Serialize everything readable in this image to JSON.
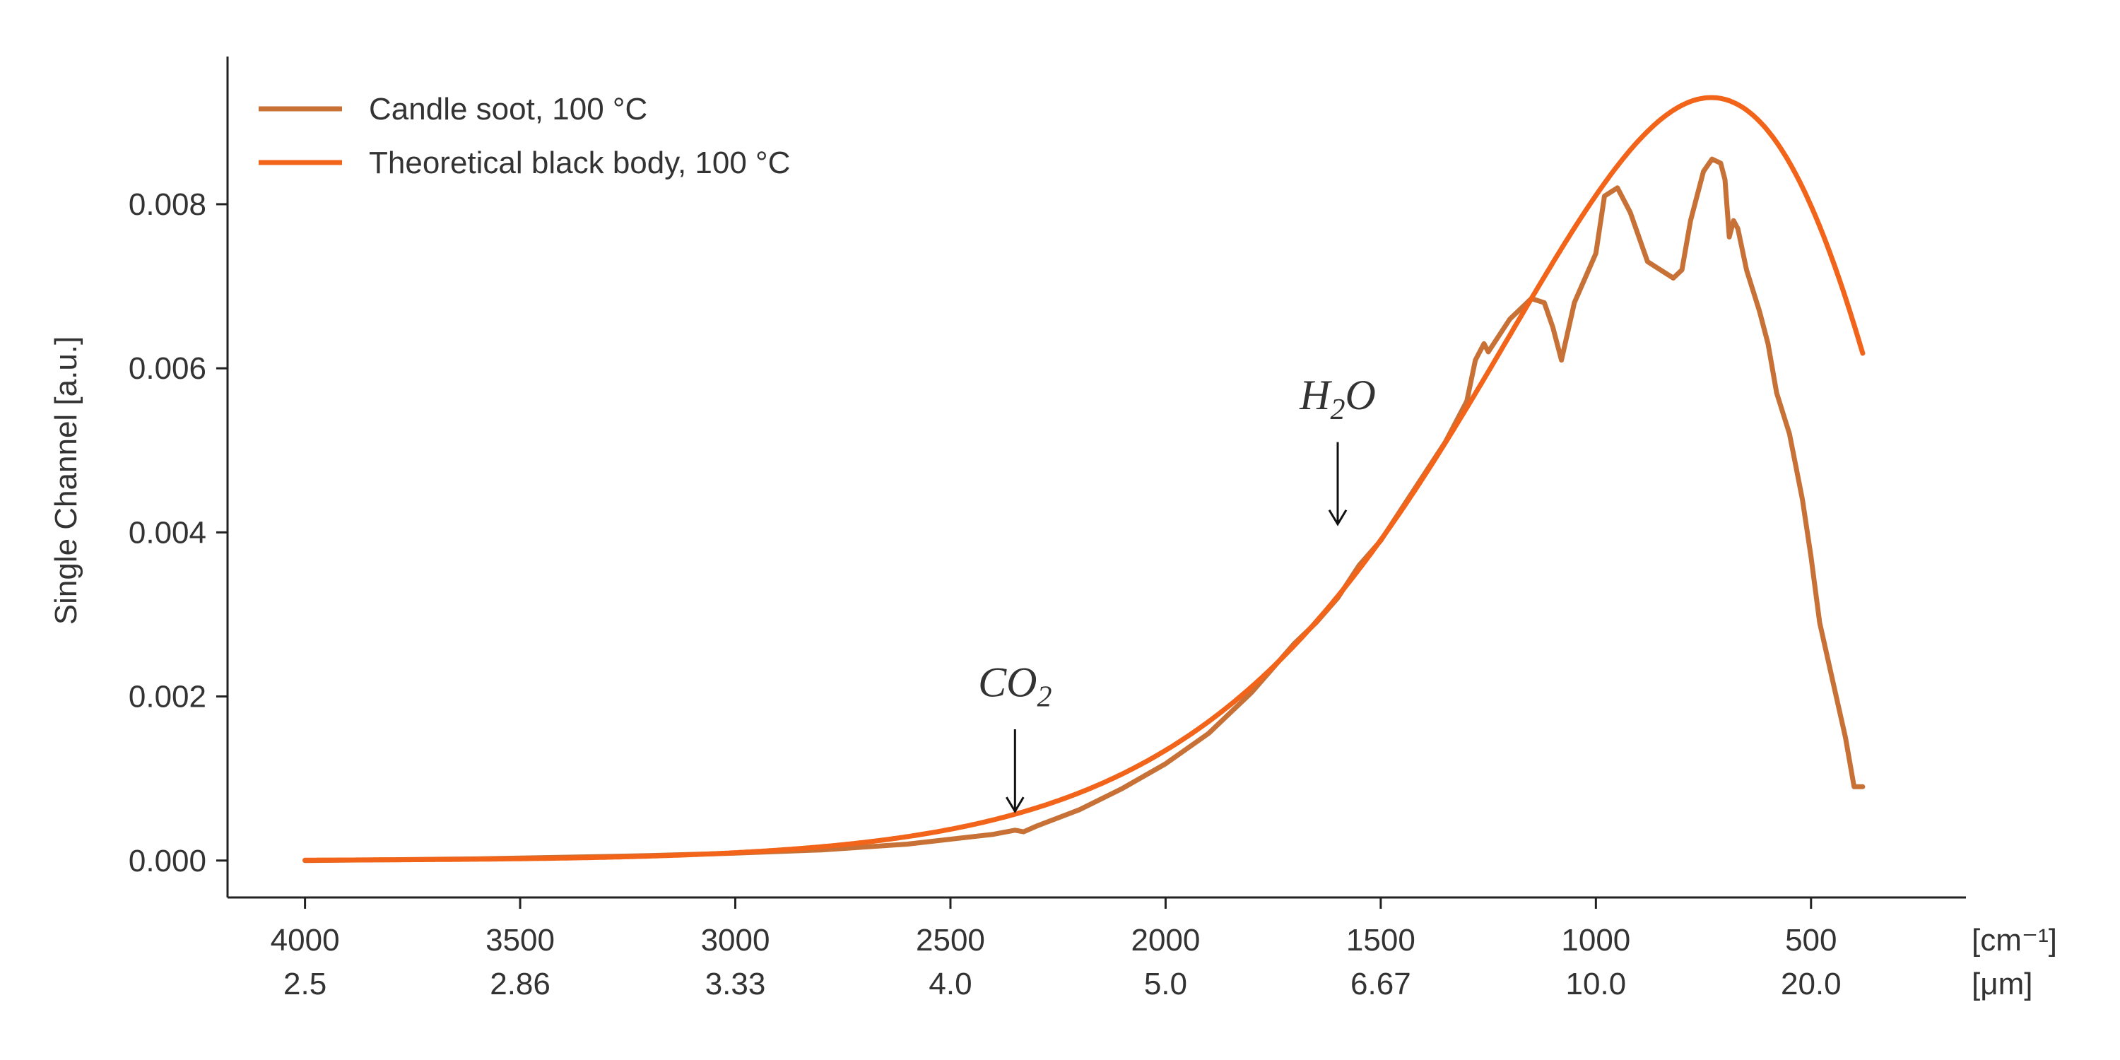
{
  "chart_data": {
    "type": "line",
    "title": "",
    "xlabel": "",
    "ylabel": "Single Channel [a.u.]",
    "x_unit_labels": [
      "[cm⁻¹]",
      "[μm]"
    ],
    "xlim": [
      4180,
      140
    ],
    "ylim": [
      -0.00045,
      0.0098
    ],
    "x_ticks": [
      {
        "value": 4000,
        "label": "4000",
        "label2": "2.5"
      },
      {
        "value": 3500,
        "label": "3500",
        "label2": "2.86"
      },
      {
        "value": 3000,
        "label": "3000",
        "label2": "3.33"
      },
      {
        "value": 2500,
        "label": "2500",
        "label2": "4.0"
      },
      {
        "value": 2000,
        "label": "2000",
        "label2": "5.0"
      },
      {
        "value": 1500,
        "label": "1500",
        "label2": "6.67"
      },
      {
        "value": 1000,
        "label": "1000",
        "label2": "10.0"
      },
      {
        "value": 500,
        "label": "500",
        "label2": "20.0"
      }
    ],
    "y_ticks": [
      {
        "value": 0.0,
        "label": "0.000"
      },
      {
        "value": 0.002,
        "label": "0.002"
      },
      {
        "value": 0.004,
        "label": "0.004"
      },
      {
        "value": 0.006,
        "label": "0.006"
      },
      {
        "value": 0.008,
        "label": "0.008"
      }
    ],
    "grid": false,
    "legend_position": "top-left",
    "series": [
      {
        "name": "Candle soot, 100 °C",
        "color": "#C87137",
        "x": [
          4000,
          3800,
          3600,
          3400,
          3200,
          3000,
          2800,
          2600,
          2400,
          2350,
          2330,
          2300,
          2200,
          2100,
          2000,
          1900,
          1800,
          1700,
          1650,
          1600,
          1550,
          1500,
          1450,
          1400,
          1350,
          1300,
          1280,
          1260,
          1250,
          1200,
          1150,
          1120,
          1100,
          1080,
          1050,
          1000,
          980,
          950,
          920,
          880,
          850,
          820,
          800,
          780,
          750,
          730,
          710,
          700,
          690,
          680,
          670,
          650,
          620,
          600,
          580,
          550,
          520,
          500,
          480,
          450,
          420,
          400,
          380
        ],
        "y": [
          0.0,
          1e-05,
          2e-05,
          4e-05,
          6e-05,
          9e-05,
          0.00013,
          0.0002,
          0.00032,
          0.00037,
          0.00035,
          0.00042,
          0.00062,
          0.00088,
          0.00118,
          0.00155,
          0.00205,
          0.00265,
          0.0029,
          0.0032,
          0.0036,
          0.0039,
          0.0043,
          0.0047,
          0.0051,
          0.0056,
          0.0061,
          0.0063,
          0.0062,
          0.0066,
          0.00685,
          0.0068,
          0.0065,
          0.0061,
          0.0068,
          0.0074,
          0.0081,
          0.0082,
          0.0079,
          0.0073,
          0.0072,
          0.0071,
          0.0072,
          0.0078,
          0.0084,
          0.00855,
          0.0085,
          0.0083,
          0.0076,
          0.0078,
          0.0077,
          0.0072,
          0.0067,
          0.0063,
          0.0057,
          0.0052,
          0.0044,
          0.0037,
          0.0029,
          0.0022,
          0.0015,
          0.0009,
          0.0009
        ]
      },
      {
        "name": "Theoretical black body, 100 °C",
        "color": "#F26419",
        "model": "planck",
        "temperature_c": 100,
        "peak_value": 0.0093,
        "x_range": [
          4000,
          380
        ]
      }
    ],
    "annotations": [
      {
        "main": "CO",
        "sub": "2",
        "x": 2350,
        "y_text": 0.002,
        "y_arrow_start": 0.0016,
        "y_arrow_end": 0.0006
      },
      {
        "main": "H",
        "sub": "2",
        "tail": "O",
        "x": 1600,
        "y_text": 0.0055,
        "y_arrow_start": 0.0051,
        "y_arrow_end": 0.0041
      }
    ]
  }
}
